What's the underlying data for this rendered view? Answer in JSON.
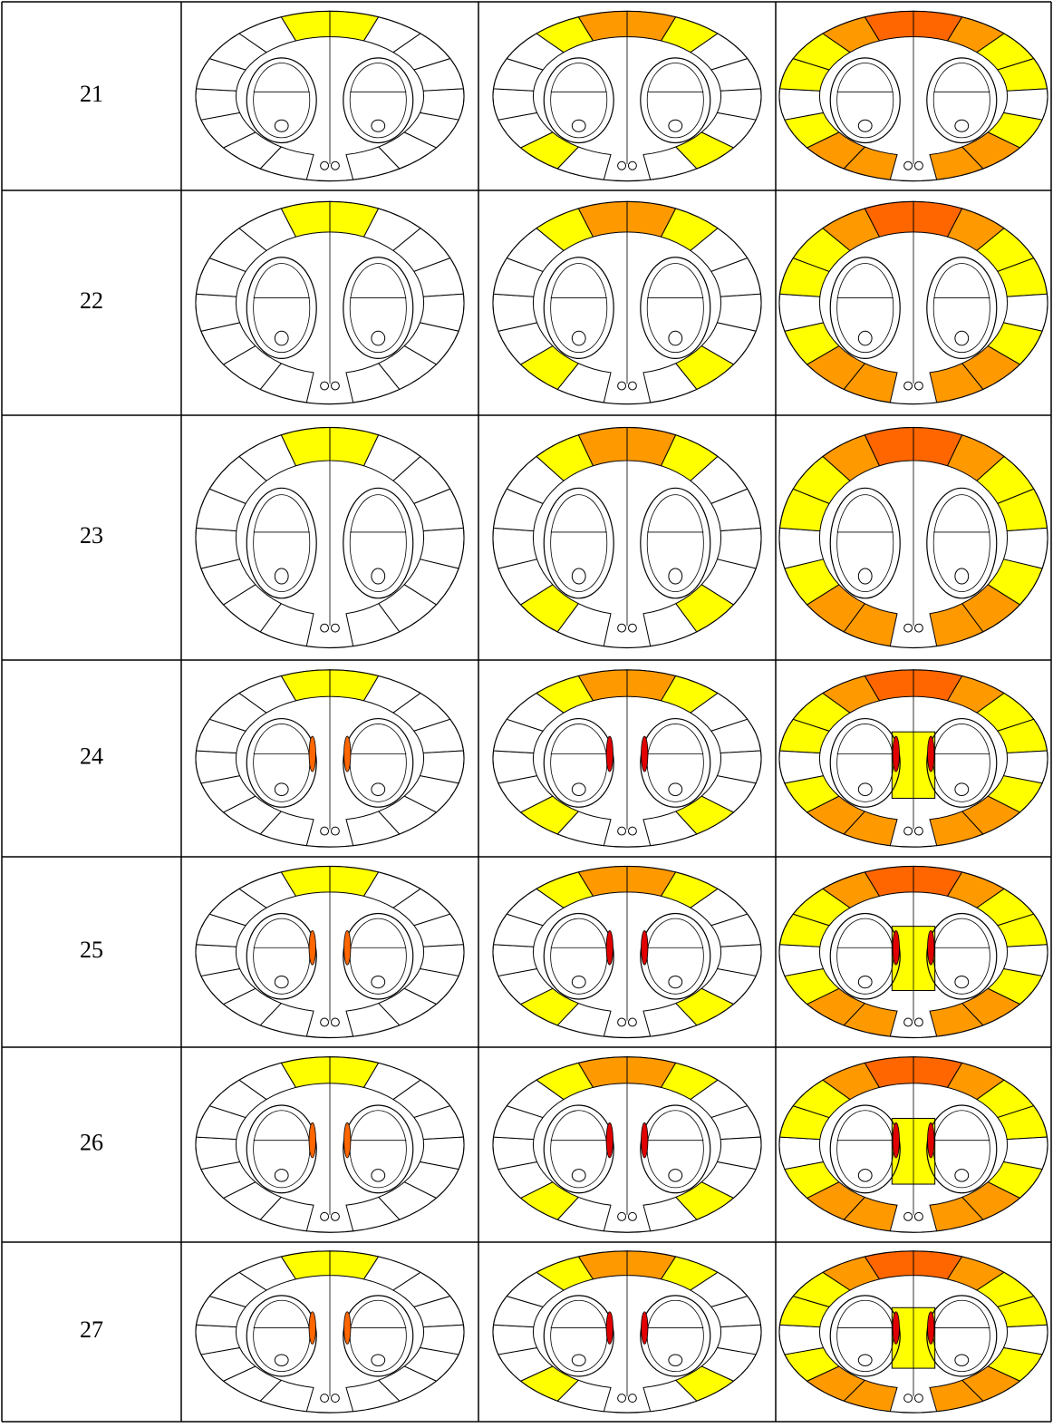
{
  "table": {
    "rows": [
      {
        "label": "21"
      },
      {
        "label": "22"
      },
      {
        "label": "23"
      },
      {
        "label": "24"
      },
      {
        "label": "25"
      },
      {
        "label": "26"
      },
      {
        "label": "27"
      }
    ]
  }
}
